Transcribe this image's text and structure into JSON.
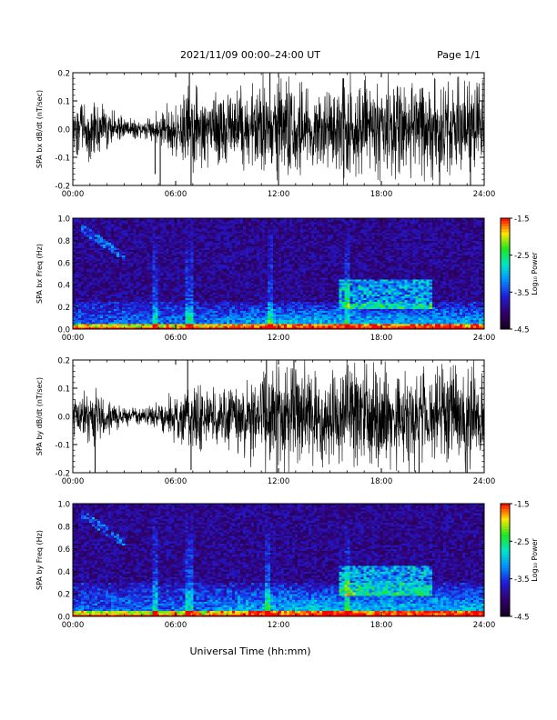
{
  "header": {
    "title": "2021/11/09  00:00–24:00 UT",
    "page": "Page 1/1"
  },
  "xlabel": "Universal Time (hh:mm)",
  "chart_data": [
    {
      "type": "line",
      "ylabel": "SPA bx dB/dt (nT/sec)",
      "xlim": [
        0,
        24
      ],
      "ylim": [
        -0.2,
        0.2
      ],
      "xticks": [
        "00:00",
        "06:00",
        "12:00",
        "18:00",
        "24:00"
      ],
      "yticks": [
        "-0.2",
        "-0.1",
        "0.0",
        "0.1",
        "0.2"
      ],
      "envelope": {
        "x": [
          0,
          1,
          2,
          3,
          4,
          5,
          6,
          7,
          8,
          9,
          10,
          11,
          12,
          13,
          14,
          15,
          16,
          17,
          18,
          19,
          20,
          21,
          22,
          23,
          24
        ],
        "amplitude": [
          0.06,
          0.07,
          0.05,
          0.03,
          0.02,
          0.04,
          0.07,
          0.09,
          0.08,
          0.08,
          0.09,
          0.11,
          0.13,
          0.12,
          0.1,
          0.11,
          0.12,
          0.13,
          0.12,
          0.11,
          0.1,
          0.11,
          0.12,
          0.12,
          0.1
        ]
      },
      "spikes": [
        {
          "x": 4.8,
          "y": -0.16
        },
        {
          "x": 5.1,
          "y": -0.2
        },
        {
          "x": 6.8,
          "y": 0.2
        },
        {
          "x": 6.9,
          "y": -0.2
        },
        {
          "x": 11.5,
          "y": 0.2
        },
        {
          "x": 12.0,
          "y": -0.2
        },
        {
          "x": 15.8,
          "y": 0.18
        },
        {
          "x": 21.4,
          "y": -0.2
        },
        {
          "x": 23.2,
          "y": -0.2
        }
      ]
    },
    {
      "type": "heatmap",
      "ylabel": "SPA bx Freq (Hz)",
      "xlim": [
        0,
        24
      ],
      "ylim": [
        0,
        1.0
      ],
      "xticks": [
        "00:00",
        "06:00",
        "12:00",
        "18:00",
        "24:00"
      ],
      "yticks": [
        "0.0",
        "0.2",
        "0.4",
        "0.6",
        "0.8",
        "1.0"
      ],
      "colorbar": {
        "label": "Log₁₀ Power",
        "range": [
          -4.5,
          -1.5
        ],
        "ticks": [
          "-1.5",
          "-2.5",
          "-3.5",
          "-4.5"
        ],
        "colormap": "rainbow"
      },
      "features": {
        "low_band_hz": 0.25,
        "enhancement_hz": [
          0.18,
          0.45
        ],
        "enhancement_time": [
          15.5,
          21
        ],
        "vertical_streaks": [
          4.8,
          6.8,
          11.5,
          16.0
        ]
      }
    },
    {
      "type": "line",
      "ylabel": "SPA by dB/dt (nT/sec)",
      "xlim": [
        0,
        24
      ],
      "ylim": [
        -0.2,
        0.2
      ],
      "xticks": [
        "00:00",
        "06:00",
        "12:00",
        "18:00",
        "24:00"
      ],
      "yticks": [
        "-0.2",
        "-0.1",
        "0.0",
        "0.1",
        "0.2"
      ],
      "envelope": {
        "x": [
          0,
          1,
          2,
          3,
          4,
          5,
          6,
          7,
          8,
          9,
          10,
          11,
          12,
          13,
          14,
          15,
          16,
          17,
          18,
          19,
          20,
          21,
          22,
          23,
          24
        ],
        "amplitude": [
          0.05,
          0.07,
          0.04,
          0.02,
          0.02,
          0.04,
          0.06,
          0.08,
          0.07,
          0.07,
          0.09,
          0.12,
          0.13,
          0.12,
          0.11,
          0.11,
          0.12,
          0.13,
          0.12,
          0.12,
          0.11,
          0.11,
          0.12,
          0.12,
          0.11
        ]
      },
      "spikes": [
        {
          "x": 1.3,
          "y": -0.2
        },
        {
          "x": 6.7,
          "y": 0.2
        },
        {
          "x": 6.9,
          "y": -0.19
        },
        {
          "x": 11.3,
          "y": 0.2
        },
        {
          "x": 11.9,
          "y": -0.2
        },
        {
          "x": 12.9,
          "y": 0.2
        },
        {
          "x": 20.2,
          "y": -0.2
        },
        {
          "x": 23.0,
          "y": -0.2
        }
      ]
    },
    {
      "type": "heatmap",
      "ylabel": "SPA by Freq (Hz)",
      "xlim": [
        0,
        24
      ],
      "ylim": [
        0,
        1.0
      ],
      "xticks": [
        "00:00",
        "06:00",
        "12:00",
        "18:00",
        "24:00"
      ],
      "yticks": [
        "0.0",
        "0.2",
        "0.4",
        "0.6",
        "0.8",
        "1.0"
      ],
      "colorbar": {
        "label": "Log₁₀ Power",
        "range": [
          -4.5,
          -1.5
        ],
        "ticks": [
          "-1.5",
          "-2.5",
          "-3.5",
          "-4.5"
        ],
        "colormap": "rainbow"
      },
      "features": {
        "low_band_hz": 0.3,
        "enhancement_hz": [
          0.18,
          0.45
        ],
        "enhancement_time": [
          15.5,
          21
        ],
        "vertical_streaks": [
          4.8,
          6.8,
          11.3,
          16.0
        ]
      }
    }
  ]
}
